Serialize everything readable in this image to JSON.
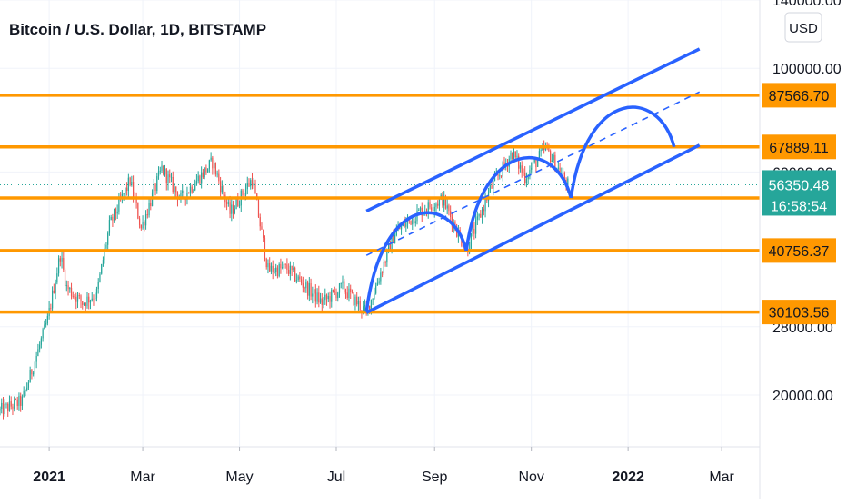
{
  "header": {
    "title": "Bitcoin / U.S. Dollar, 1D, BITSTAMP",
    "currency_button": "USD"
  },
  "colors": {
    "up": "#26a69a",
    "down": "#ef5350",
    "level_line": "#ff9800",
    "channel": "#2962ff",
    "current_price_bg": "#26a69a",
    "label_text": "#131722"
  },
  "chart_data": {
    "type": "candlestick",
    "title": "Bitcoin / U.S. Dollar, 1D, BITSTAMP",
    "y_scale": "log",
    "ylim": [
      15500,
      140000
    ],
    "x_start": "2020-12-01",
    "x_end": "2022-03-25",
    "y_axis_labels": [
      "140000.00",
      "100000.00",
      "60000.00",
      "28000.00",
      "20000.00"
    ],
    "x_axis_labels": [
      {
        "date": "2021-01-01",
        "label": "2021",
        "bold": true
      },
      {
        "date": "2021-03-01",
        "label": "Mar",
        "bold": false
      },
      {
        "date": "2021-05-01",
        "label": "May",
        "bold": false
      },
      {
        "date": "2021-07-01",
        "label": "Jul",
        "bold": false
      },
      {
        "date": "2021-09-01",
        "label": "Sep",
        "bold": false
      },
      {
        "date": "2021-11-01",
        "label": "Nov",
        "bold": false
      },
      {
        "date": "2022-01-01",
        "label": "2022",
        "bold": true
      },
      {
        "date": "2022-03-01",
        "label": "Mar",
        "bold": false
      }
    ],
    "horizontal_levels": [
      {
        "value": 87566.7,
        "label": "87566.70"
      },
      {
        "value": 67889.11,
        "label": "67889.11"
      },
      {
        "value": 52810.47,
        "label": "52810.47"
      },
      {
        "value": 40756.37,
        "label": "40756.37"
      },
      {
        "value": 30103.56,
        "label": "30103.56"
      }
    ],
    "current_price": {
      "value": 56350.48,
      "label": "56350.48",
      "countdown": "16:58:54"
    },
    "price_path": [
      {
        "date": "2020-12-01",
        "price": 18500
      },
      {
        "date": "2020-12-15",
        "price": 19400
      },
      {
        "date": "2020-12-31",
        "price": 28900
      },
      {
        "date": "2021-01-08",
        "price": 40000
      },
      {
        "date": "2021-01-12",
        "price": 34000
      },
      {
        "date": "2021-01-22",
        "price": 31500
      },
      {
        "date": "2021-01-31",
        "price": 33000
      },
      {
        "date": "2021-02-08",
        "price": 46000
      },
      {
        "date": "2021-02-21",
        "price": 57500
      },
      {
        "date": "2021-02-28",
        "price": 45500
      },
      {
        "date": "2021-03-13",
        "price": 61000
      },
      {
        "date": "2021-03-25",
        "price": 52500
      },
      {
        "date": "2021-04-14",
        "price": 63000
      },
      {
        "date": "2021-04-25",
        "price": 49000
      },
      {
        "date": "2021-05-09",
        "price": 58000
      },
      {
        "date": "2021-05-19",
        "price": 37000
      },
      {
        "date": "2021-05-31",
        "price": 37300
      },
      {
        "date": "2021-06-22",
        "price": 31500
      },
      {
        "date": "2021-07-05",
        "price": 34000
      },
      {
        "date": "2021-07-20",
        "price": 30000
      },
      {
        "date": "2021-08-07",
        "price": 44500
      },
      {
        "date": "2021-08-23",
        "price": 49500
      },
      {
        "date": "2021-09-06",
        "price": 52500
      },
      {
        "date": "2021-09-21",
        "price": 40700
      },
      {
        "date": "2021-10-06",
        "price": 55000
      },
      {
        "date": "2021-10-20",
        "price": 66000
      },
      {
        "date": "2021-10-28",
        "price": 58500
      },
      {
        "date": "2021-11-10",
        "price": 67500
      },
      {
        "date": "2021-11-24",
        "price": 56350
      }
    ],
    "channel": {
      "start_date": "2021-07-20",
      "end_date": "2022-02-15",
      "lower": [
        30000,
        68500
      ],
      "mid": [
        39800,
        89000
      ],
      "upper": [
        49500,
        110000
      ]
    },
    "projection_arcs": [
      {
        "from": {
          "date": "2021-07-20",
          "price": 30103
        },
        "to": {
          "date": "2021-09-21",
          "price": 40756
        }
      },
      {
        "from": {
          "date": "2021-09-21",
          "price": 40756
        },
        "to": {
          "date": "2021-11-26",
          "price": 52810
        }
      },
      {
        "from": {
          "date": "2021-11-26",
          "price": 52810
        },
        "to": {
          "date": "2022-01-30",
          "price": 67889
        }
      }
    ]
  }
}
